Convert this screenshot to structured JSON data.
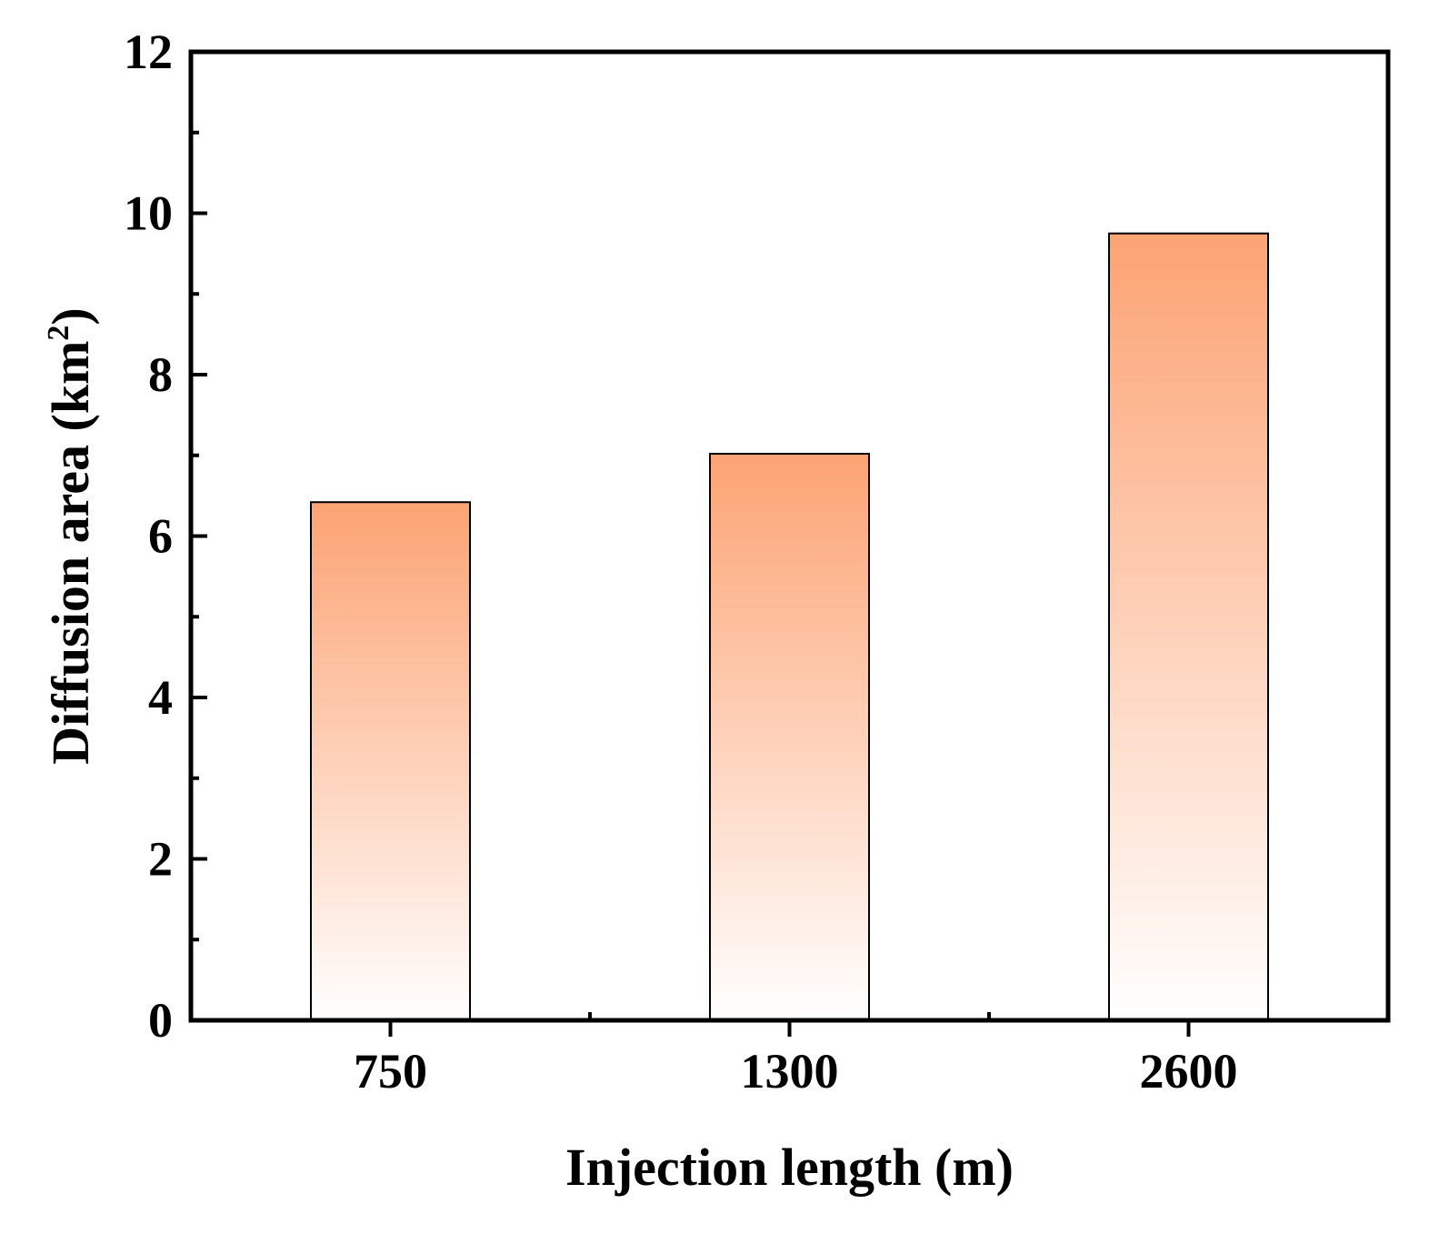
{
  "chart_data": {
    "type": "bar",
    "title": "",
    "xlabel": "Injection length (m)",
    "ylabel": {
      "prefix": "Diffusion area (km",
      "superscript": "2",
      "suffix": ")"
    },
    "categories": [
      "750",
      "1300",
      "2600"
    ],
    "values": [
      6.42,
      7.02,
      9.75
    ],
    "ylim": [
      0,
      12
    ],
    "yticks": [
      0,
      2,
      4,
      6,
      8,
      10,
      12
    ],
    "ytick_labels": [
      "0",
      "2",
      "4",
      "6",
      "8",
      "10",
      "12"
    ],
    "grid": false,
    "legend": "none",
    "colors": {
      "bar_top": "#fca373",
      "bar_bottom": "#ffffff",
      "bar_outline": "#000000",
      "axis": "#000000"
    }
  }
}
